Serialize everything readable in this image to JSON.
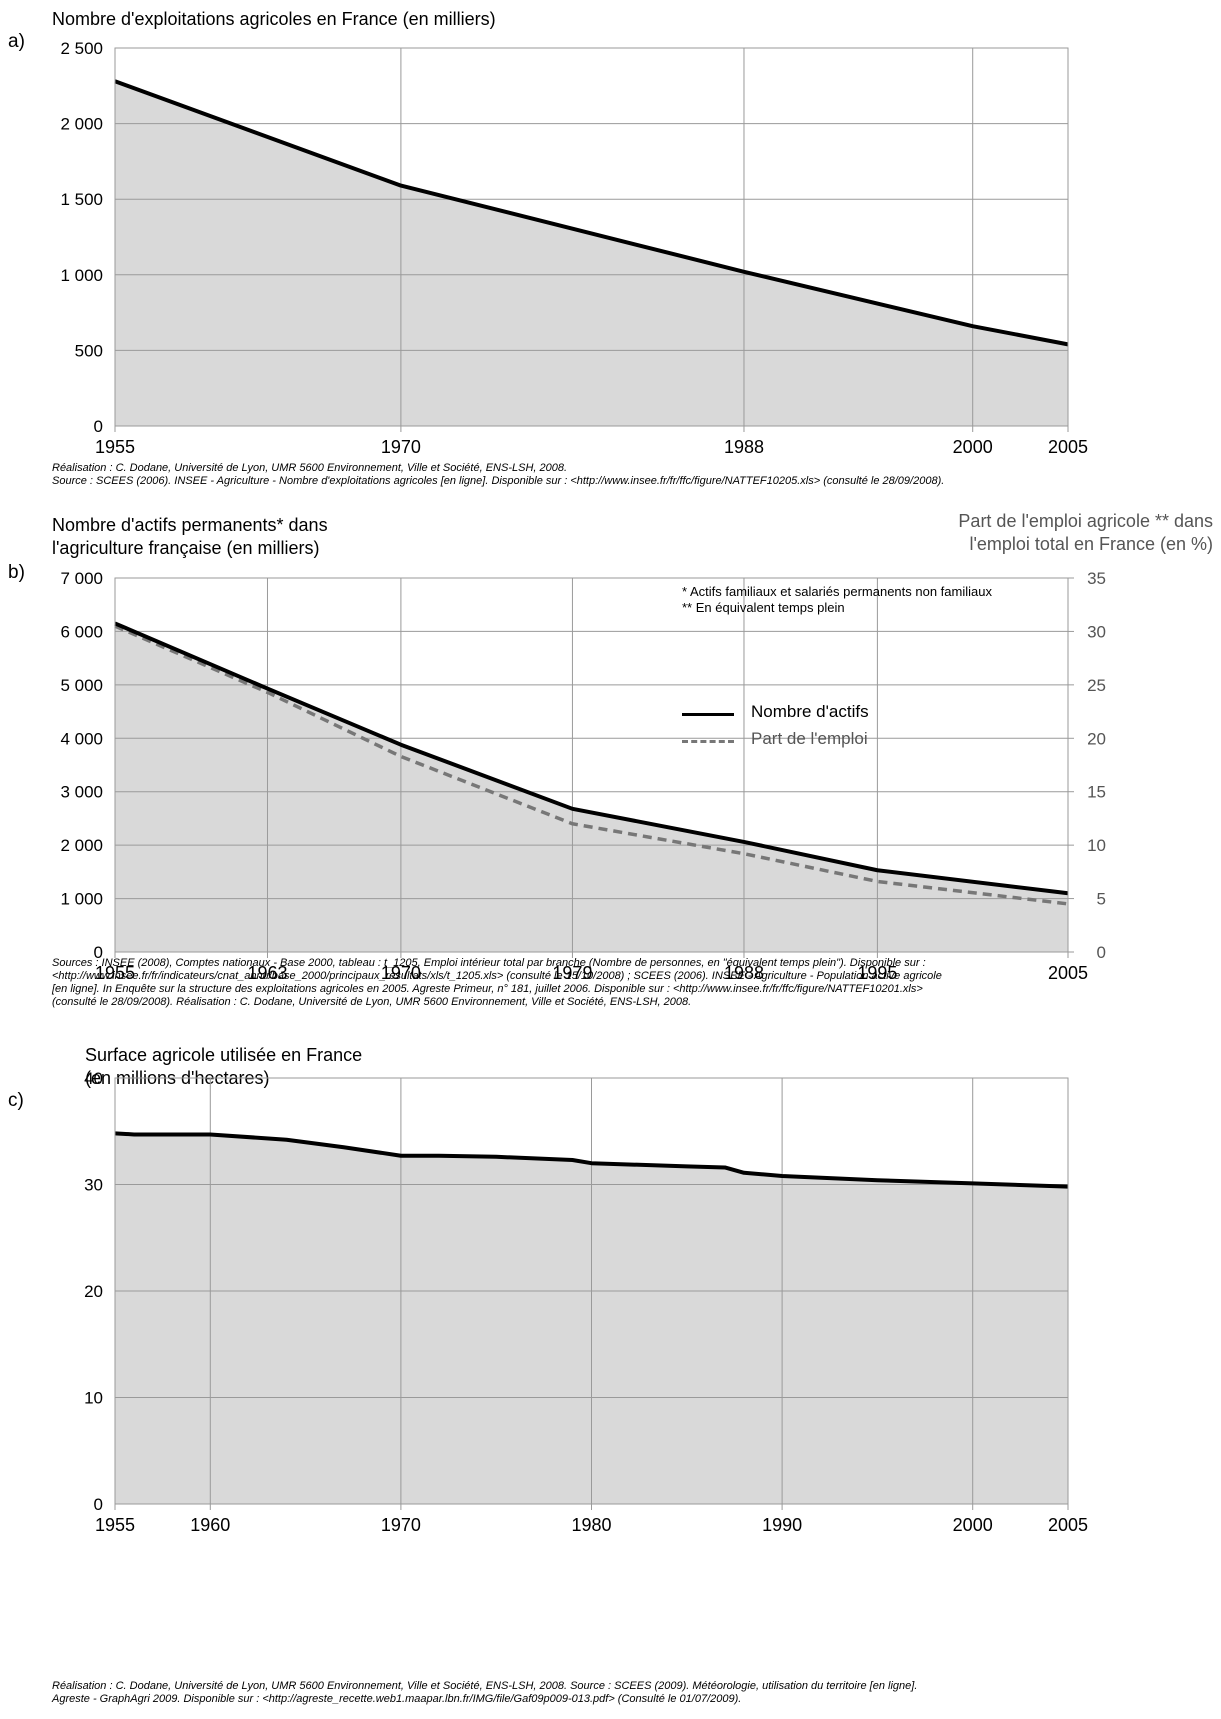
{
  "chart_data": [
    {
      "type": "area",
      "letter": "a)",
      "title": "Nombre d'exploitations agricoles en France (en milliers)",
      "x": [
        1955,
        1970,
        1988,
        2000,
        2005
      ],
      "series": [
        {
          "values": [
            2280,
            1590,
            1020,
            660,
            540
          ]
        }
      ],
      "xlim": [
        1955,
        2005
      ],
      "ylim": [
        0,
        2500
      ],
      "y_ticks": [
        0,
        500,
        1000,
        1500,
        2000,
        2500
      ],
      "y_tick_labels": [
        "0",
        "500",
        "1 000",
        "1 500",
        "2 000",
        "2 500"
      ],
      "x_ticks": [
        1955,
        1970,
        1988,
        2000,
        2005
      ],
      "grid": true,
      "note_lines": [
        "Réalisation : C. Dodane, Université de Lyon, UMR 5600 Environnement, Ville et Société, ENS-LSH, 2008.",
        "Source : SCEES (2006). INSEE - Agriculture - Nombre d'exploitations agricoles [en ligne]. Disponible sur : <http://www.insee.fr/fr/ffc/figure/NATTEF10205.xls> (consulté le 28/09/2008)."
      ]
    },
    {
      "type": "area",
      "letter": "b)",
      "title_lines": [
        "Nombre d'actifs permanents* dans",
        "l'agriculture française (en milliers)"
      ],
      "right_title_lines": [
        "Part de l'emploi agricole ** dans",
        "l'emploi total en France (en %)"
      ],
      "x": [
        1955,
        1963,
        1970,
        1979,
        1988,
        1995,
        2005
      ],
      "series": [
        {
          "name": "Nombre d'actifs",
          "axis": "left",
          "values": [
            6150,
            4930,
            3880,
            2680,
            2060,
            1530,
            1100
          ]
        },
        {
          "name": "Part de l'emploi",
          "axis": "right",
          "values": [
            30.5,
            24.3,
            18.3,
            12.0,
            9.2,
            6.6,
            4.5
          ]
        }
      ],
      "xlim": [
        1955,
        2005
      ],
      "ylim": [
        0,
        7000
      ],
      "y2lim": [
        0,
        35
      ],
      "y_ticks": [
        0,
        1000,
        2000,
        3000,
        4000,
        5000,
        6000,
        7000
      ],
      "y_tick_labels": [
        "0",
        "1 000",
        "2 000",
        "3 000",
        "4 000",
        "5 000",
        "6 000",
        "7 000"
      ],
      "y2_ticks": [
        0,
        5,
        10,
        15,
        20,
        25,
        30,
        35
      ],
      "x_ticks": [
        1955,
        1963,
        1970,
        1979,
        1988,
        1995,
        2005
      ],
      "grid": true,
      "legend_notes": [
        "* Actifs familiaux et salariés permanents non familiaux",
        "** En équivalent temps plein"
      ],
      "legend": [
        "Nombre d'actifs",
        "Part de l'emploi"
      ],
      "note_lines": [
        "Sources : INSEE (2008), Comptes nationaux - Base 2000, tableau : t_1205, Emploi intérieur total par branche (Nombre de personnes, en \"équivalent temps plein\"). Disponible sur :",
        "<http://www.insee.fr/fr/indicateurs/cnat_annu/base_2000/principaux_resultats/xls/t_1205.xls> (consulté le 15/10/2008) ; SCEES (2006). INSEE - Agriculture - Population active agricole",
        "[en ligne]. In Enquête sur la structure des exploitations agricoles en 2005. Agreste Primeur, n° 181, juillet 2006. Disponible sur : <http://www.insee.fr/fr/ffc/figure/NATTEF10201.xls>",
        "(consulté le 28/09/2008). Réalisation : C. Dodane, Université de Lyon, UMR 5600 Environnement, Ville et Société, ENS-LSH, 2008."
      ]
    },
    {
      "type": "area",
      "letter": "c)",
      "title_lines": [
        "Surface agricole utilisée en France",
        "(en millions d'hectares)"
      ],
      "x": [
        1955,
        1956,
        1960,
        1964,
        1967,
        1970,
        1972,
        1975,
        1979,
        1980,
        1985,
        1987,
        1988,
        1990,
        1995,
        2000,
        2005
      ],
      "series": [
        {
          "values": [
            34.8,
            34.7,
            34.7,
            34.2,
            33.5,
            32.7,
            32.7,
            32.6,
            32.3,
            32.0,
            31.7,
            31.6,
            31.1,
            30.8,
            30.4,
            30.1,
            29.8
          ]
        }
      ],
      "xlim": [
        1955,
        2005
      ],
      "ylim": [
        0,
        40
      ],
      "y_ticks": [
        0,
        10,
        20,
        30,
        40
      ],
      "x_ticks": [
        1955,
        1960,
        1970,
        1980,
        1990,
        2000,
        2005
      ],
      "grid": true,
      "note_lines": [
        "Réalisation : C. Dodane, Université de Lyon, UMR 5600 Environnement, Ville et Société, ENS-LSH, 2008. Source : SCEES (2009). Météorologie, utilisation du territoire [en ligne].",
        "Agreste - GraphAgri 2009. Disponible sur : <http://agreste_recette.web1.maapar.lbn.fr/IMG/file/Gaf09p009-013.pdf> (Consulté le 01/07/2009)."
      ]
    }
  ],
  "colors": {
    "fill": "#d9d9d9",
    "line": "#000000",
    "dashed": "#777777",
    "grid": "#9a9a9a",
    "link": "#0000cc"
  }
}
